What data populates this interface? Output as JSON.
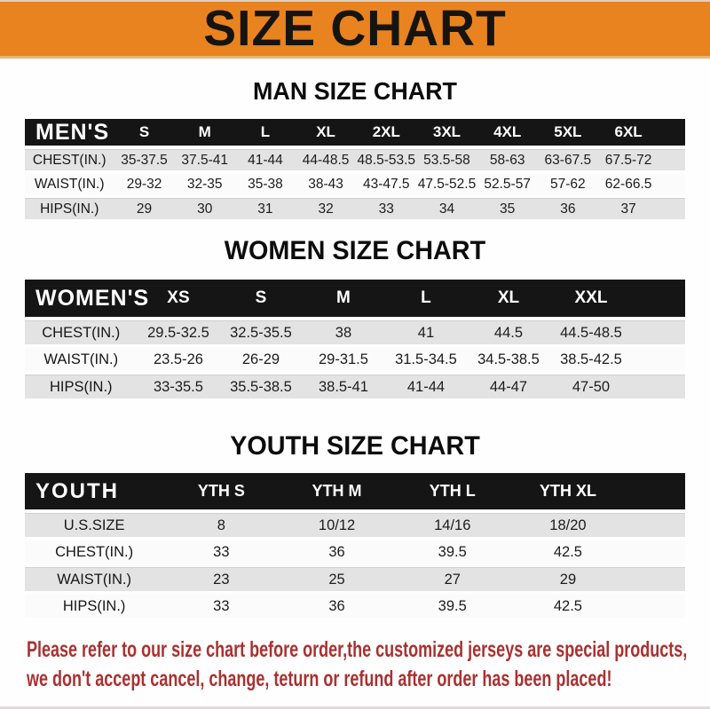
{
  "banner": {
    "title": "SIZE CHART"
  },
  "sections": [
    {
      "heading": "MAN SIZE CHART",
      "table": {
        "header_label": "MEN'S",
        "sizes": [
          "S",
          "M",
          "L",
          "XL",
          "2XL",
          "3XL",
          "4XL",
          "5XL",
          "6XL"
        ],
        "rows": [
          {
            "label": "CHEST(IN.)",
            "values": [
              "35-37.5",
              "37.5-41",
              "41-44",
              "44-48.5",
              "48.5-53.5",
              "53.5-58",
              "58-63",
              "63-67.5",
              "67.5-72"
            ]
          },
          {
            "label": "WAIST(IN.)",
            "values": [
              "29-32",
              "32-35",
              "35-38",
              "38-43",
              "43-47.5",
              "47.5-52.5",
              "52.5-57",
              "57-62",
              "62-66.5"
            ]
          },
          {
            "label": "HIPS(IN.)",
            "values": [
              "29",
              "30",
              "31",
              "32",
              "33",
              "34",
              "35",
              "36",
              "37"
            ]
          }
        ]
      }
    },
    {
      "heading": "WOMEN SIZE CHART",
      "table": {
        "header_label": "WOMEN'S",
        "sizes": [
          "XS",
          "S",
          "M",
          "L",
          "XL",
          "XXL"
        ],
        "rows": [
          {
            "label": "CHEST(IN.)",
            "values": [
              "29.5-32.5",
              "32.5-35.5",
              "38",
              "41",
              "44.5",
              "44.5-48.5"
            ]
          },
          {
            "label": "WAIST(IN.)",
            "values": [
              "23.5-26",
              "26-29",
              "29-31.5",
              "31.5-34.5",
              "34.5-38.5",
              "38.5-42.5"
            ]
          },
          {
            "label": "HIPS(IN.)",
            "values": [
              "33-35.5",
              "35.5-38.5",
              "38.5-41",
              "41-44",
              "44-47",
              "47-50"
            ]
          }
        ]
      }
    },
    {
      "heading": "YOUTH SIZE CHART",
      "table": {
        "header_label": "YOUTH",
        "sizes": [
          "YTH S",
          "YTH M",
          "YTH L",
          "YTH XL"
        ],
        "rows": [
          {
            "label": "U.S.SIZE",
            "values": [
              "8",
              "10/12",
              "14/16",
              "18/20"
            ]
          },
          {
            "label": "CHEST(IN.)",
            "values": [
              "33",
              "36",
              "39.5",
              "42.5"
            ]
          },
          {
            "label": "WAIST(IN.)",
            "values": [
              "23",
              "25",
              "27",
              "29"
            ]
          },
          {
            "label": "HIPS(IN.)",
            "values": [
              "33",
              "36",
              "39.5",
              "42.5"
            ]
          }
        ]
      }
    }
  ],
  "disclaimer": {
    "lines": [
      "Please refer to our size chart before order,the customized jerseys are special products,",
      "we don't accept cancel, change, teturn or refund after order has been placed!"
    ]
  },
  "colors": {
    "banner_bg": "#E8831F",
    "header_bar": "#151515",
    "row_alt": "#E3E3E3",
    "disclaimer_text": "#A93131"
  }
}
